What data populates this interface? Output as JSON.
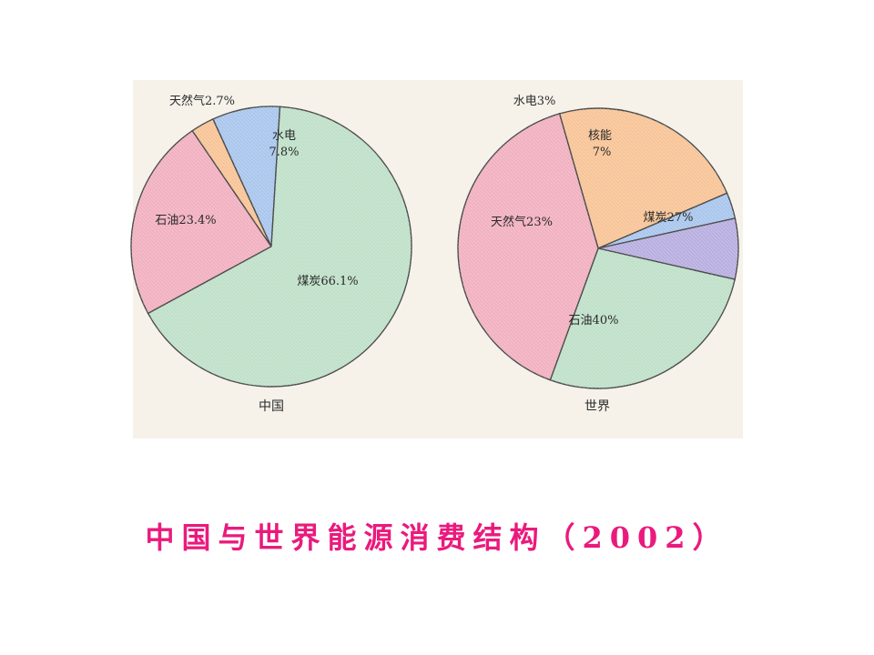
{
  "slide": {
    "title": "中国与世界能源消费结构（2002）"
  },
  "chart_data": [
    {
      "type": "pie",
      "title": "中国",
      "slices": [
        {
          "label": "煤炭",
          "value": 66.1,
          "text": "煤炭66.1%",
          "color": "#bfe0c9"
        },
        {
          "label": "石油",
          "value": 23.4,
          "text": "石油23.4%",
          "color": "#f1b0c0"
        },
        {
          "label": "天然气",
          "value": 2.7,
          "text": "天然气2.7%",
          "color": "#f7c497"
        },
        {
          "label": "水电",
          "value": 7.8,
          "text_lines": [
            "水电",
            "7.8%"
          ],
          "color": "#a9c6ec"
        }
      ]
    },
    {
      "type": "pie",
      "title": "世界",
      "slices": [
        {
          "label": "煤炭",
          "value": 27,
          "text": "煤炭27%",
          "color": "#bfe0c9"
        },
        {
          "label": "石油",
          "value": 40,
          "text": "石油40%",
          "color": "#f1b0c0"
        },
        {
          "label": "天然气",
          "value": 23,
          "text": "天然气23%",
          "color": "#f7c497"
        },
        {
          "label": "水电",
          "value": 3,
          "text": "水电3%",
          "color": "#a9c6ec"
        },
        {
          "label": "核能",
          "value": 7,
          "text_lines": [
            "核能",
            "7%"
          ],
          "color": "#b8aee0"
        }
      ]
    }
  ]
}
